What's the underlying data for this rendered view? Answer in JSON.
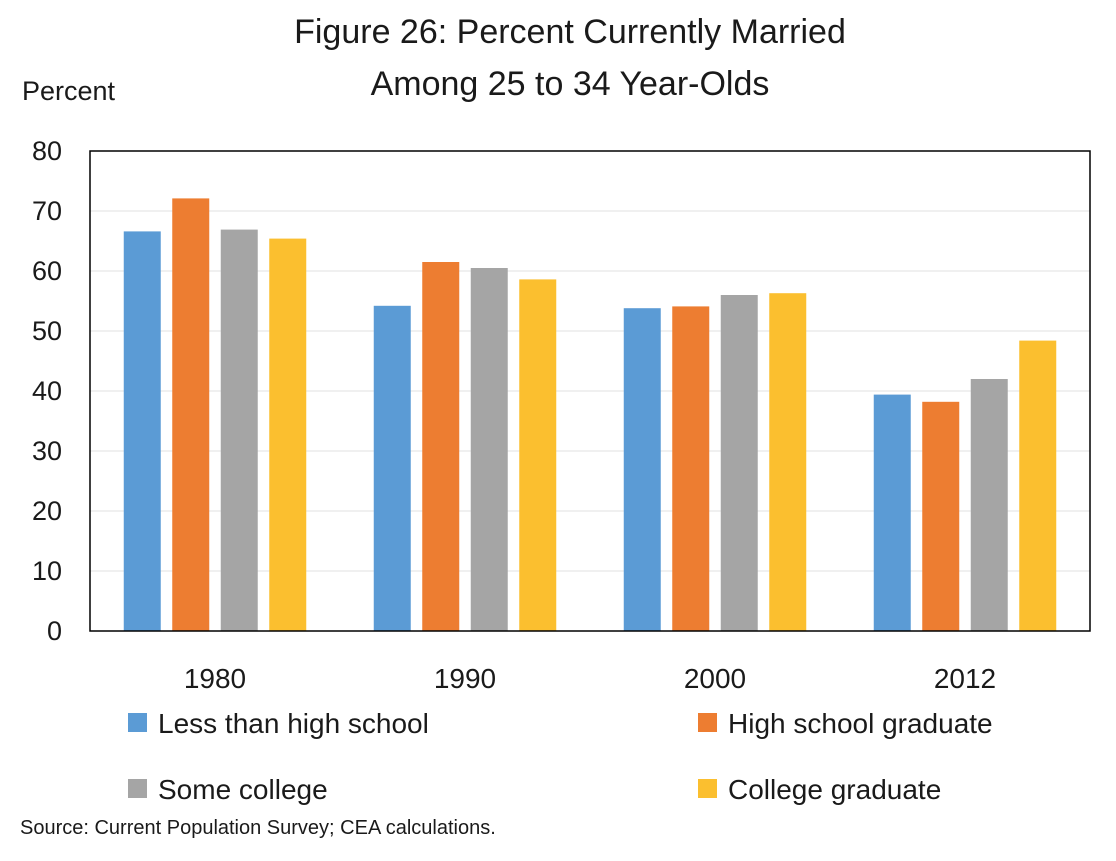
{
  "chart_data": {
    "type": "bar",
    "title": [
      "Figure 26: Percent Currently Married",
      "Among 25 to 34 Year-Olds"
    ],
    "ylabel": "Percent",
    "xlabel": "",
    "categories": [
      "1980",
      "1990",
      "2000",
      "2012"
    ],
    "ylim": [
      0,
      80
    ],
    "yticks": [
      0,
      10,
      20,
      30,
      40,
      50,
      60,
      70,
      80
    ],
    "grid": true,
    "legend_position": "bottom",
    "series": [
      {
        "name": "Less than high school",
        "color": "#5b9bd5",
        "values": [
          66.6,
          54.2,
          53.8,
          39.4
        ]
      },
      {
        "name": "High school graduate",
        "color": "#ed7d31",
        "values": [
          72.1,
          61.5,
          54.1,
          38.2
        ]
      },
      {
        "name": "Some college",
        "color": "#a5a5a5",
        "values": [
          66.9,
          60.5,
          56.0,
          42.0
        ]
      },
      {
        "name": "College graduate",
        "color": "#fbbf2f",
        "values": [
          65.4,
          58.6,
          56.3,
          48.4
        ]
      }
    ],
    "source": "Source: Current Population Survey; CEA calculations."
  }
}
